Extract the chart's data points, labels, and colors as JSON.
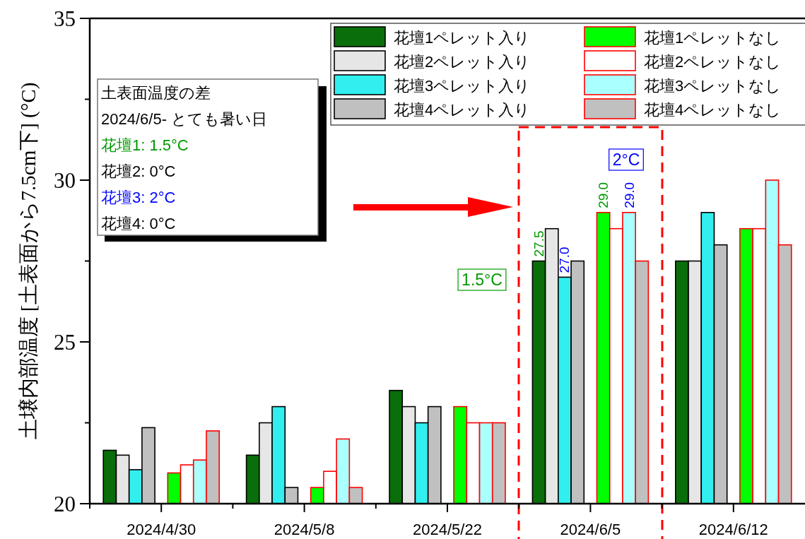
{
  "chart_data": {
    "type": "bar",
    "ylabel": "土壌内部温度 [土表面から7.5cm下] (°C)",
    "categories": [
      "2024/4/30",
      "2024/5/8",
      "2024/5/22",
      "2024/6/5",
      "2024/6/12"
    ],
    "series": [
      {
        "name": "花壇1ペレット入り",
        "color": "#0a6e0a",
        "values": [
          21.65,
          21.5,
          23.5,
          27.5,
          27.5
        ],
        "value_labels": [
          null,
          null,
          null,
          "27.5",
          null
        ]
      },
      {
        "name": "花壇2ペレット入り",
        "color": "#e6e6e6",
        "values": [
          21.5,
          22.5,
          23.0,
          28.5,
          27.5
        ]
      },
      {
        "name": "花壇3ペレット入り",
        "color": "#33eeee",
        "values": [
          21.05,
          23.0,
          22.5,
          27.0,
          29.0
        ],
        "value_labels": [
          null,
          null,
          null,
          "27.0",
          null
        ]
      },
      {
        "name": "花壇4ペレット入り",
        "color": "#c0c0c0",
        "values": [
          22.35,
          20.5,
          23.0,
          27.5,
          28.0
        ]
      },
      {
        "name": "花壇1ペレットなし",
        "color": "#00ff00",
        "values": [
          20.95,
          20.5,
          23.0,
          29.0,
          28.5
        ],
        "value_labels": [
          null,
          null,
          null,
          "29.0",
          null
        ]
      },
      {
        "name": "花壇2ペレットなし",
        "color": "#ffffff",
        "values": [
          21.2,
          21.0,
          22.5,
          28.5,
          28.5
        ]
      },
      {
        "name": "花壇3ペレットなし",
        "color": "#aaffff",
        "values": [
          21.35,
          22.0,
          22.5,
          29.0,
          30.0
        ],
        "value_labels": [
          null,
          null,
          null,
          "29.0",
          null
        ]
      },
      {
        "name": "花壇4ペレットなし",
        "color": "#c0c0c0",
        "values": [
          22.25,
          20.5,
          22.5,
          27.5,
          28.0
        ]
      }
    ],
    "ylim": [
      20,
      35
    ],
    "yticks": [
      20,
      {
        "value": 22.5,
        "label": null
      },
      25,
      {
        "value": 27.5,
        "label": null
      },
      30,
      {
        "value": 32.5,
        "label": null
      },
      35
    ],
    "legend": "top right",
    "annotations": [
      "土表面温度の差",
      "2024/6/5- とても暑い日",
      "花壇1: 1.5°C",
      "花壇2: 0°C",
      "花壇3: 2°C",
      "花壇4: 0°C",
      "1.5°C",
      "2°C"
    ]
  }
}
